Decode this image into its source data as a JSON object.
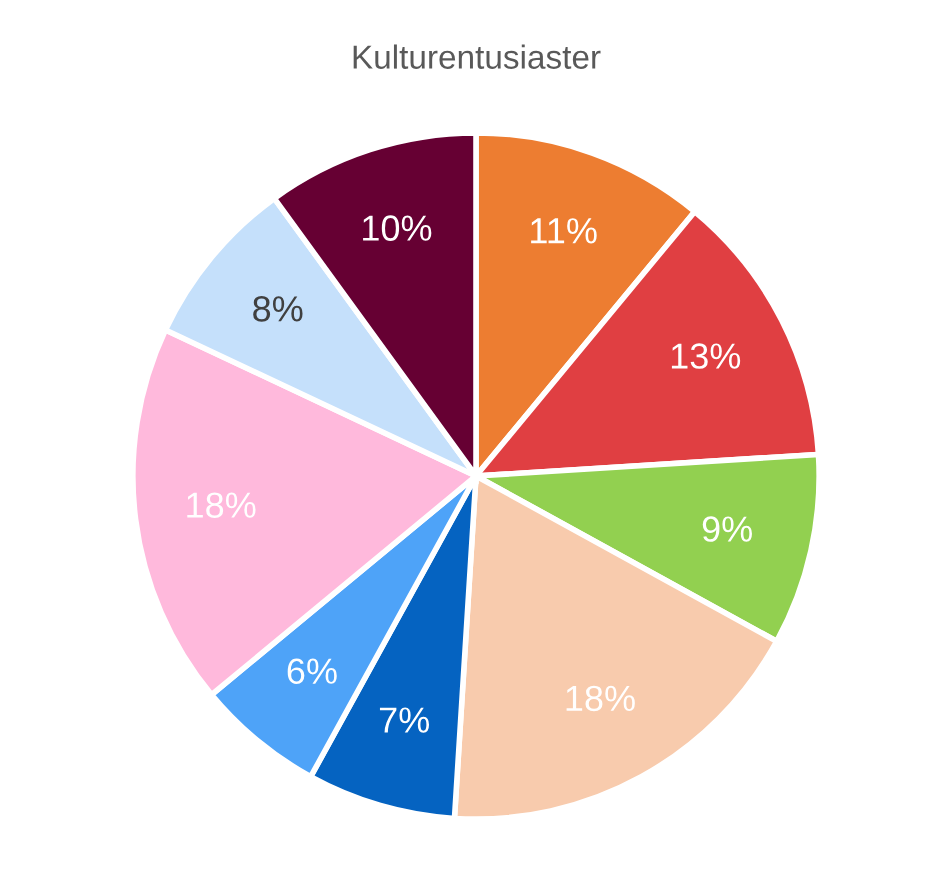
{
  "chart_data": {
    "type": "pie",
    "title": "Kulturentusiaster",
    "categories": [
      null,
      null,
      null,
      null,
      null,
      null,
      null,
      null,
      null
    ],
    "values": [
      11,
      13,
      9,
      18,
      7,
      6,
      18,
      8,
      10
    ],
    "value_labels": [
      "11%",
      "13%",
      "9%",
      "18%",
      "7%",
      "6%",
      "18%",
      "8%",
      "10%"
    ],
    "colors": [
      "#ed7d31",
      "#e03f42",
      "#92d050",
      "#f8cbad",
      "#0563c1",
      "#4ea3f8",
      "#ffb9dc",
      "#c5e0fb",
      "#660033"
    ]
  }
}
